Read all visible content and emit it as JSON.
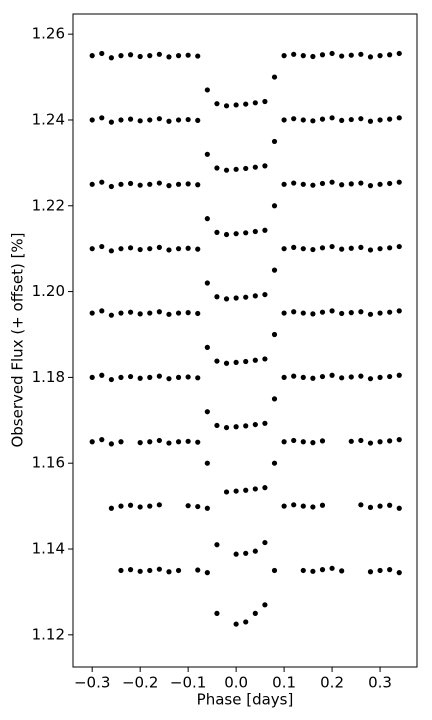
{
  "chart_data": {
    "type": "scatter",
    "xlabel": "Phase [days]",
    "ylabel": "Observed Flux (+ offset) [%]",
    "color": "#000000",
    "xlim": [
      -0.34,
      0.377
    ],
    "ylim": [
      1.1125,
      1.2647
    ],
    "xticks": [
      {
        "value": -0.3,
        "label": "−0.3"
      },
      {
        "value": -0.2,
        "label": "−0.2"
      },
      {
        "value": -0.1,
        "label": "−0.1"
      },
      {
        "value": 0,
        "label": "0.0"
      },
      0.1,
      0.2,
      0.3
    ],
    "yticks": [
      1.12,
      1.14,
      1.16,
      1.18,
      {
        "value": 1.2,
        "label": "1.20"
      },
      1.22,
      1.24,
      1.26
    ],
    "x": [
      -0.3,
      -0.28,
      -0.26,
      -0.24,
      -0.22,
      -0.2,
      -0.18,
      -0.16,
      -0.14,
      -0.12,
      -0.1,
      -0.08,
      -0.06,
      -0.04,
      -0.02,
      0.0,
      0.02,
      0.04,
      0.06,
      0.08,
      0.1,
      0.12,
      0.14,
      0.16,
      0.18,
      0.2,
      0.22,
      0.24,
      0.26,
      0.28,
      0.3,
      0.32,
      0.34
    ],
    "series": [
      {
        "values": [
          1.255,
          1.2555,
          1.2545,
          1.255,
          1.2552,
          1.2548,
          1.255,
          1.2553,
          1.2547,
          1.255,
          1.2551,
          1.2549,
          1.247,
          1.2438,
          1.2433,
          1.2435,
          1.2437,
          1.244,
          1.2443,
          1.25,
          1.255,
          1.2553,
          1.255,
          1.2548,
          1.2552,
          1.2555,
          1.2549,
          1.2551,
          1.2553,
          1.2547,
          1.255,
          1.2552,
          1.2555
        ]
      },
      {
        "values": [
          1.24,
          1.2405,
          1.2395,
          1.24,
          1.2402,
          1.2398,
          1.24,
          1.2403,
          1.2397,
          1.24,
          1.2401,
          1.2399,
          1.232,
          1.2288,
          1.2283,
          1.2285,
          1.2287,
          1.229,
          1.2293,
          1.235,
          1.24,
          1.2403,
          1.24,
          1.2398,
          1.2402,
          1.2405,
          1.2399,
          1.2401,
          1.2403,
          1.2397,
          1.24,
          1.2402,
          1.2405
        ]
      },
      {
        "values": [
          1.225,
          1.2255,
          1.2245,
          1.225,
          1.2252,
          1.2248,
          1.225,
          1.2253,
          1.2247,
          1.225,
          1.2251,
          1.2249,
          1.217,
          1.2138,
          1.2133,
          1.2135,
          1.2137,
          1.214,
          1.2143,
          1.22,
          1.225,
          1.2253,
          1.225,
          1.2248,
          1.2252,
          1.2255,
          1.2249,
          1.2251,
          1.2253,
          1.2247,
          1.225,
          1.2252,
          1.2255
        ]
      },
      {
        "values": [
          1.21,
          1.2105,
          1.2095,
          1.21,
          1.2102,
          1.2098,
          1.21,
          1.2103,
          1.2097,
          1.21,
          1.2101,
          1.2099,
          1.202,
          1.1988,
          1.1983,
          1.1985,
          1.1987,
          1.199,
          1.1993,
          1.205,
          1.21,
          1.2103,
          1.21,
          1.2098,
          1.2102,
          1.2105,
          1.2099,
          1.2101,
          1.2103,
          1.2097,
          1.21,
          1.2102,
          1.2105
        ]
      },
      {
        "values": [
          1.195,
          1.1955,
          1.1945,
          1.195,
          1.1952,
          1.1948,
          1.195,
          1.1953,
          1.1947,
          1.195,
          1.1951,
          1.1949,
          1.187,
          1.1838,
          1.1833,
          1.1835,
          1.1837,
          1.184,
          1.1843,
          1.19,
          1.195,
          1.1953,
          1.195,
          1.1948,
          1.1952,
          1.1955,
          1.1949,
          1.1951,
          1.1953,
          1.1947,
          1.195,
          1.1952,
          1.1955
        ]
      },
      {
        "values": [
          1.18,
          1.1805,
          1.1795,
          1.18,
          1.1802,
          1.1798,
          1.18,
          1.1803,
          1.1797,
          1.18,
          1.1801,
          1.1799,
          1.172,
          1.1688,
          1.1683,
          1.1685,
          1.1687,
          1.169,
          1.1693,
          1.175,
          1.18,
          1.1803,
          1.18,
          1.1798,
          1.1802,
          1.1805,
          1.1799,
          1.1801,
          1.1803,
          1.1797,
          1.18,
          1.1802,
          1.1805
        ]
      },
      {
        "values": [
          1.165,
          1.1655,
          1.1645,
          1.165,
          null,
          1.1648,
          1.165,
          1.1653,
          1.1647,
          1.165,
          1.1651,
          1.1649,
          1.16,
          null,
          1.1533,
          1.1535,
          1.1537,
          1.154,
          1.1543,
          1.16,
          1.165,
          1.1653,
          1.165,
          1.1648,
          1.1652,
          null,
          null,
          1.1651,
          1.1653,
          1.1647,
          1.165,
          1.1652,
          1.1655
        ]
      },
      {
        "values": [
          null,
          null,
          1.1495,
          1.15,
          1.1502,
          1.1498,
          1.15,
          1.1503,
          null,
          null,
          1.1501,
          1.1499,
          1.1495,
          1.141,
          null,
          1.1388,
          1.139,
          1.1395,
          1.1415,
          null,
          1.15,
          1.1503,
          1.15,
          1.1498,
          1.1502,
          null,
          null,
          null,
          1.1503,
          1.1497,
          1.15,
          1.1502,
          1.1495
        ]
      },
      {
        "values": [
          null,
          null,
          null,
          1.135,
          1.1352,
          1.1348,
          1.135,
          1.1353,
          1.1347,
          1.135,
          null,
          1.1351,
          1.1345,
          1.125,
          null,
          1.1225,
          1.123,
          1.125,
          1.127,
          1.135,
          null,
          null,
          1.135,
          1.1348,
          1.1352,
          1.1355,
          1.1349,
          null,
          null,
          1.1347,
          1.135,
          1.1352,
          1.1345
        ]
      }
    ]
  }
}
